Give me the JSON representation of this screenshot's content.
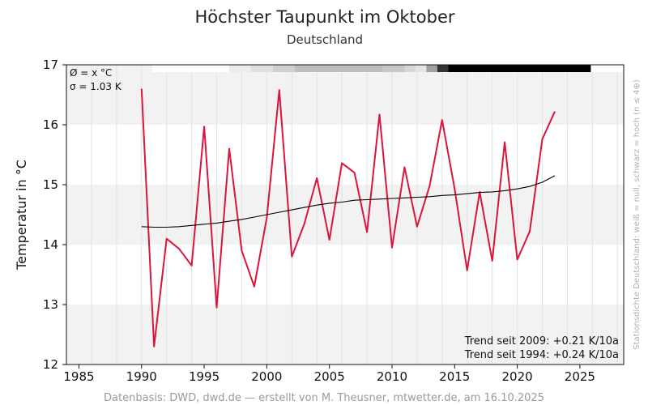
{
  "chart_data": {
    "type": "line",
    "title": "Höchster Taupunkt im Oktober",
    "subtitle": "Deutschland",
    "ylabel": "Temperatur in °C",
    "xlim": [
      1984,
      2028.5
    ],
    "ylim": [
      12,
      17
    ],
    "x_ticks": [
      1985,
      1990,
      1995,
      2000,
      2005,
      2010,
      2015,
      2020,
      2025
    ],
    "y_ticks": [
      12,
      13,
      14,
      15,
      16,
      17
    ],
    "series": [
      {
        "color": "#dc143c",
        "x": [
          1990,
          1991,
          1992,
          1993,
          1994,
          1995,
          1996,
          1997,
          1998,
          1999,
          2000,
          2001,
          2002,
          2003,
          2004,
          2005,
          2006,
          2007,
          2008,
          2009,
          2010,
          2011,
          2012,
          2013,
          2014,
          2015,
          2016,
          2017,
          2018,
          2019,
          2020,
          2021,
          2022,
          2023
        ],
        "values": [
          16.6,
          12.3,
          14.1,
          13.93,
          13.65,
          15.97,
          12.95,
          15.6,
          13.9,
          13.3,
          14.45,
          16.58,
          13.8,
          14.35,
          15.11,
          14.08,
          15.36,
          15.2,
          14.21,
          16.17,
          13.95,
          15.29,
          14.3,
          14.98,
          16.08,
          14.93,
          13.57,
          14.88,
          13.73,
          15.71,
          13.75,
          14.22,
          15.76,
          16.22
        ]
      },
      {
        "color": "#000000",
        "x": [
          1990,
          1991,
          1992,
          1993,
          1994,
          1995,
          1996,
          1997,
          1998,
          1999,
          2000,
          2001,
          2002,
          2003,
          2004,
          2005,
          2006,
          2007,
          2008,
          2009,
          2010,
          2011,
          2012,
          2013,
          2014,
          2015,
          2016,
          2017,
          2018,
          2019,
          2020,
          2021,
          2022,
          2023
        ],
        "values": [
          14.3,
          14.29,
          14.29,
          14.3,
          14.32,
          14.34,
          14.36,
          14.39,
          14.42,
          14.46,
          14.5,
          14.54,
          14.58,
          14.62,
          14.66,
          14.69,
          14.71,
          14.74,
          14.75,
          14.76,
          14.77,
          14.78,
          14.79,
          14.8,
          14.82,
          14.83,
          14.85,
          14.87,
          14.88,
          14.9,
          14.93,
          14.97,
          15.04,
          15.15
        ]
      }
    ],
    "station_density_bar": {
      "colors": [
        "#ffffff",
        "#ffffff",
        "#ffffff",
        "#ffffff",
        "#ffffff",
        "#ffffff",
        "#ffffff",
        "#ececec",
        "#ececec",
        "#e0e0e0",
        "#e0e0e0",
        "#d0d0d0",
        "#d0d0d0",
        "#bdbdbd",
        "#bdbdbd",
        "#bdbdbd",
        "#bdbdbd",
        "#bdbdbd",
        "#bdbdbd",
        "#bdbdbd",
        "#bdbdbd",
        "#c8c8c8",
        "#c8c8c8",
        "#d6d6d6",
        "#e4e4e4",
        "#a0a0a0",
        "#333333",
        "#000000",
        "#000000",
        "#000000",
        "#000000",
        "#000000",
        "#000000",
        "#000000",
        "#000000",
        "#000000",
        "#000000",
        "#000000",
        "#000000",
        "#000000",
        "#ffffff",
        "#ffffff",
        "#ffffff"
      ]
    },
    "grid": true,
    "stats": {
      "mean": "Ø = x °C",
      "sigma": "σ = 1.03 K"
    },
    "trend_labels": [
      "Trend seit 2009: +0.21 K/10a",
      "Trend seit 1994: +0.24 K/10a"
    ],
    "side_note": "Stationsdichte Deutschland: weiß = null, schwarz = hoch (n ≤ 4⊕)",
    "source": "Datenbasis: DWD, dwd.de — erstellt von M. Theusner, mtwetter.de, am 16.10.2025"
  }
}
